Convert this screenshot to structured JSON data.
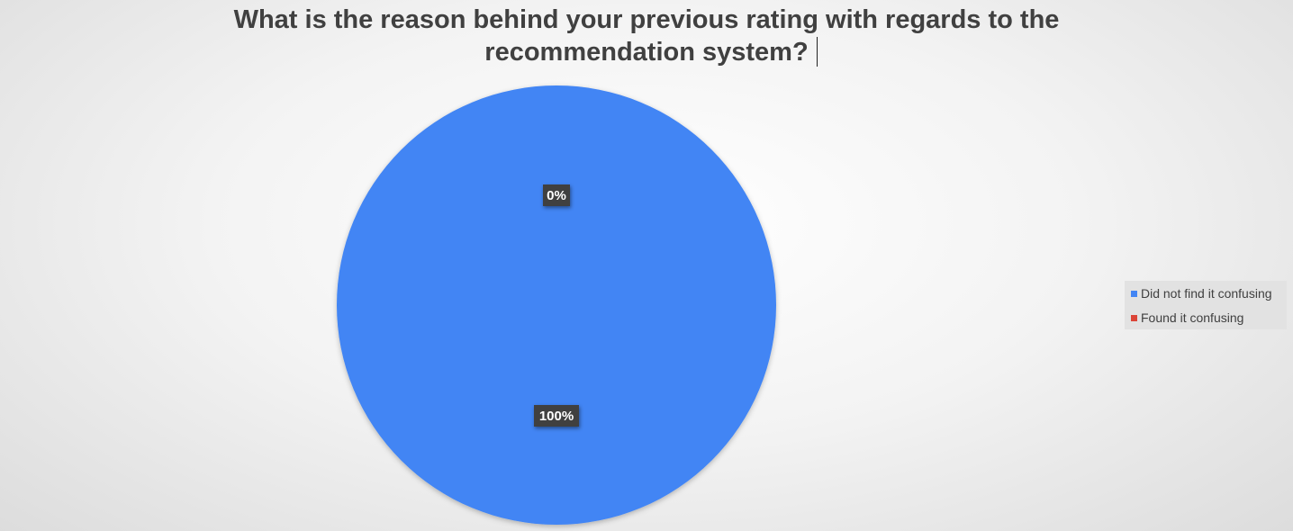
{
  "chart_data": {
    "type": "pie",
    "title": "What is the reason behind your previous rating with regards to the recommendation system?",
    "categories": [
      "Did not find it confusing",
      "Found it confusing"
    ],
    "values": [
      100,
      0
    ],
    "data_labels": [
      "100%",
      "0%"
    ],
    "colors": [
      "#4285f4",
      "#db4437"
    ],
    "legend": {
      "position": "right",
      "items": [
        {
          "label": "Did not find it confusing",
          "color": "#4285f4"
        },
        {
          "label": "Found it confusing",
          "color": "#db4437"
        }
      ]
    }
  }
}
